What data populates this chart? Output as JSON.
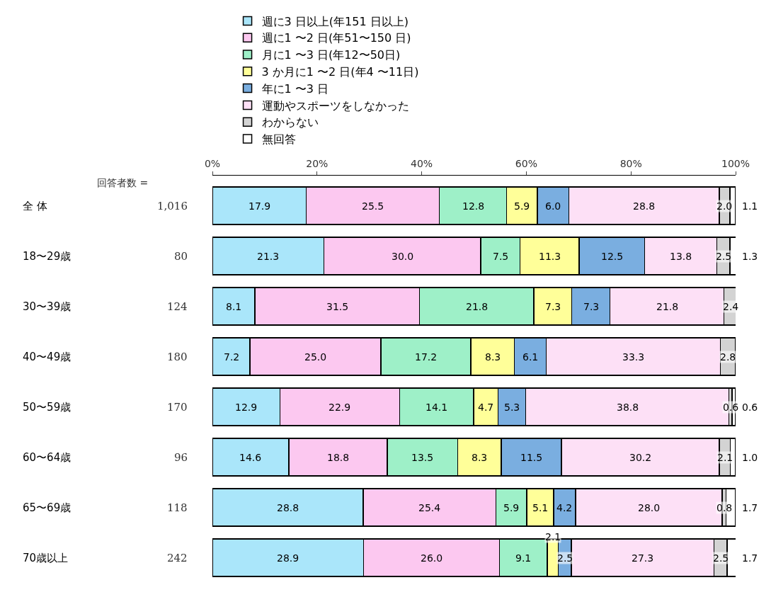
{
  "chart_data": {
    "type": "bar",
    "orientation": "horizontal",
    "stacked": true,
    "legend": "top",
    "categories": [
      "全 体",
      "18〜29歳",
      "30〜39歳",
      "40〜49歳",
      "50〜59歳",
      "60〜64歳",
      "65〜69歳",
      "70歳以上"
    ],
    "x2lim": [
      0,
      100
    ],
    "x2ticks": [
      {
        "value": 0,
        "label": "0%"
      },
      {
        "value": 20,
        "label": "20%"
      },
      {
        "value": 40,
        "label": "40%"
      },
      {
        "value": 60,
        "label": "60%"
      },
      {
        "value": 80,
        "label": "80%"
      },
      {
        "value": 100,
        "label": "100%"
      }
    ],
    "series": [
      {
        "name": "週に3 日以上(年151 日以上)",
        "color": "#aae6fa",
        "values": [
          17.9,
          21.3,
          8.1,
          7.2,
          12.9,
          14.6,
          28.8,
          28.9
        ],
        "value_labels": [
          "17.9",
          "21.3",
          "8.1",
          "7.2",
          "12.9",
          "14.6",
          "28.8",
          "28.9"
        ]
      },
      {
        "name": "週に1 〜2 日(年51〜150 日)",
        "color": "#fcc8f0",
        "values": [
          25.5,
          30.0,
          31.5,
          25.0,
          22.9,
          18.8,
          25.4,
          26.0
        ],
        "value_labels": [
          "25.5",
          "30.0",
          "31.5",
          "25.0",
          "22.9",
          "18.8",
          "25.4",
          "26.0"
        ]
      },
      {
        "name": "月に1 〜3 日(年12〜50日)",
        "color": "#9ef0c8",
        "values": [
          12.8,
          7.5,
          21.8,
          17.2,
          14.1,
          13.5,
          5.9,
          9.1
        ],
        "value_labels": [
          "12.8",
          "7.5",
          "21.8",
          "17.2",
          "14.1",
          "13.5",
          "5.9",
          "9.1"
        ]
      },
      {
        "name": "3 か月に1 〜2 日(年4 〜11日)",
        "color": "#ffff99",
        "values": [
          5.9,
          11.3,
          7.3,
          8.3,
          4.7,
          8.3,
          5.1,
          2.1
        ],
        "value_labels": [
          "5.9",
          "11.3",
          "7.3",
          "8.3",
          "4.7",
          "8.3",
          "5.1",
          "2.1"
        ]
      },
      {
        "name": "年に1 〜3 日",
        "color": "#7aaee0",
        "values": [
          6.0,
          12.5,
          7.3,
          6.1,
          5.3,
          11.5,
          4.2,
          2.5
        ],
        "value_labels": [
          "6.0",
          "12.5",
          "7.3",
          "6.1",
          "5.3",
          "11.5",
          "4.2",
          "2.5"
        ]
      },
      {
        "name": "運動やスポーツをしなかった",
        "color": "#fde0f6",
        "values": [
          28.8,
          13.8,
          21.8,
          33.3,
          38.8,
          30.2,
          28.0,
          27.3
        ],
        "value_labels": [
          "28.8",
          "13.8",
          "21.8",
          "33.3",
          "38.8",
          "30.2",
          "28.0",
          "27.3"
        ]
      },
      {
        "name": "わからない",
        "color": "#d3d3d3",
        "values": [
          2.0,
          2.5,
          2.4,
          2.8,
          0.6,
          2.1,
          0.8,
          2.5
        ],
        "value_labels": [
          "2.0",
          "2.5",
          "2.4",
          "2.8",
          "0.6",
          "2.1",
          "0.8",
          "2.5"
        ]
      },
      {
        "name": "無回答",
        "color": "#ffffff",
        "values": [
          1.1,
          1.3,
          null,
          null,
          0.6,
          1.0,
          1.7,
          1.7
        ],
        "value_labels": [
          "1.1",
          "1.3",
          null,
          null,
          "0.6",
          "1.0",
          "1.7",
          "1.7"
        ]
      }
    ],
    "annotations": [
      "回答者数 =",
      "1,016",
      "80",
      "124",
      "180",
      "170",
      "96",
      "118",
      "242"
    ]
  }
}
